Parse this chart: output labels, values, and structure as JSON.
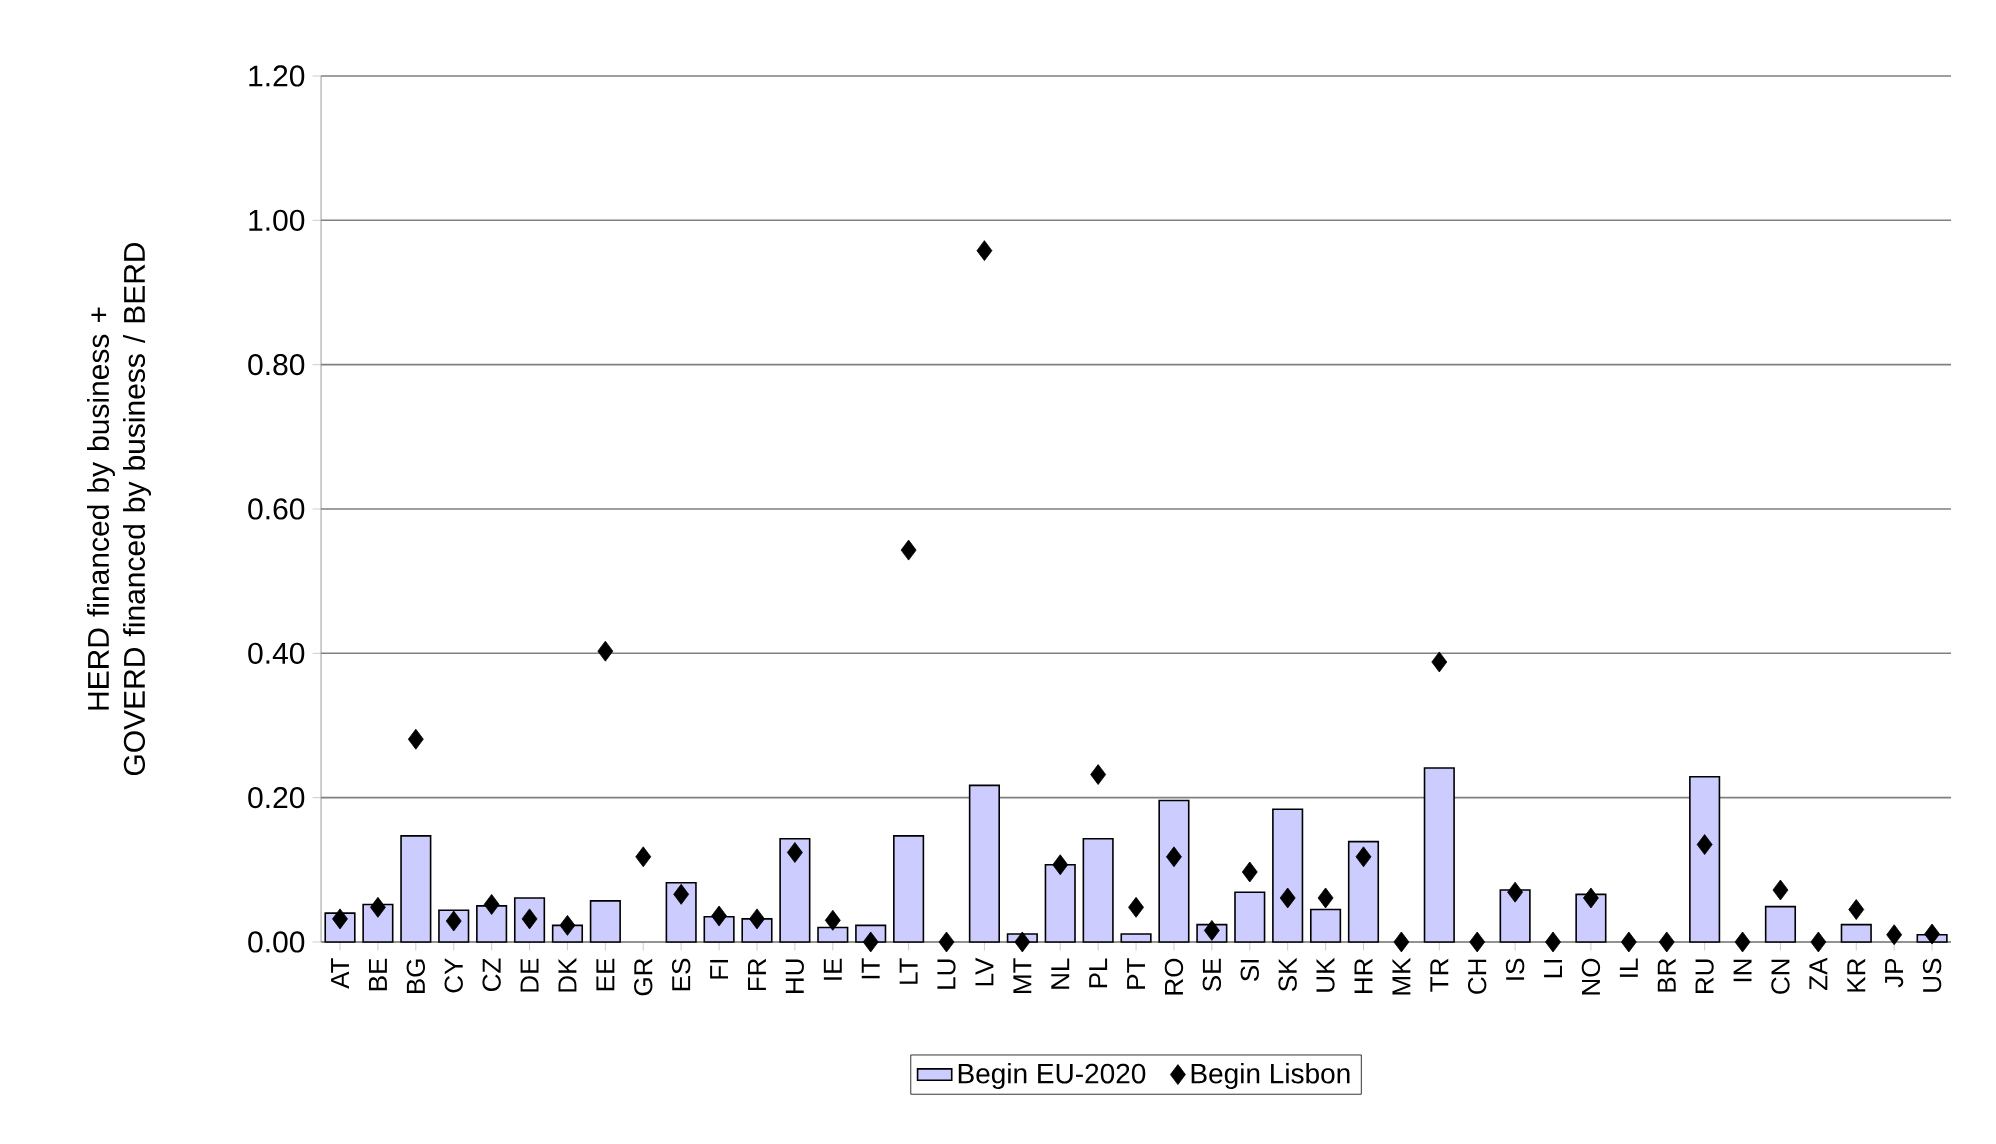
{
  "chart_data": {
    "type": "bar",
    "ylabel": "HERD financed by business + GOVERD financed by business / BERD",
    "categories": [
      "AT",
      "BE",
      "BG",
      "CY",
      "CZ",
      "DE",
      "DK",
      "EE",
      "GR",
      "ES",
      "FI",
      "FR",
      "HU",
      "IE",
      "IT",
      "LT",
      "LU",
      "LV",
      "MT",
      "NL",
      "PL",
      "PT",
      "RO",
      "SE",
      "SI",
      "SK",
      "UK",
      "HR",
      "MK",
      "TR",
      "CH",
      "IS",
      "LI",
      "NO",
      "IL",
      "BR",
      "RU",
      "IN",
      "CN",
      "ZA",
      "KR",
      "JP",
      "US"
    ],
    "series": [
      {
        "name": "Begin EU-2020",
        "color": "#ccccff",
        "values": [
          0.04,
          0.052,
          0.147,
          0.044,
          0.05,
          0.061,
          0.023,
          0.057,
          null,
          0.082,
          0.035,
          0.032,
          0.143,
          0.02,
          0.023,
          0.147,
          null,
          0.217,
          0.011,
          0.107,
          0.143,
          0.011,
          0.196,
          0.024,
          0.069,
          0.184,
          0.045,
          0.139,
          null,
          0.241,
          null,
          0.072,
          null,
          0.066,
          null,
          null,
          0.229,
          null,
          0.049,
          null,
          0.024,
          null,
          0.01
        ]
      },
      {
        "name": "Begin Lisbon",
        "type": "scatter",
        "color": "#000000",
        "values": [
          0.032,
          0.048,
          0.281,
          0.029,
          0.052,
          0.032,
          0.023,
          0.403,
          0.118,
          0.066,
          0.036,
          0.032,
          0.124,
          0.03,
          0.0,
          0.543,
          0.0,
          0.958,
          0.0,
          0.107,
          0.232,
          0.048,
          0.118,
          0.016,
          0.097,
          0.061,
          0.061,
          0.118,
          0.0,
          0.388,
          0.0,
          0.069,
          0.0,
          0.061,
          0.0,
          0.0,
          0.135,
          0.0,
          0.072,
          0.0,
          0.045,
          0.01,
          0.011
        ]
      }
    ],
    "marker": "diamond",
    "ylim": [
      0,
      1.2
    ],
    "yticks": [
      {
        "value": 0,
        "label": "0.00"
      },
      {
        "value": 0.2,
        "label": "0.20"
      },
      {
        "value": 0.4,
        "label": "0.40"
      },
      {
        "value": 0.6,
        "label": "0.60"
      },
      {
        "value": 0.8,
        "label": "0.80"
      },
      {
        "value": 1.0,
        "label": "1.00"
      },
      {
        "value": 1.2,
        "label": "1.20"
      }
    ],
    "grid": "y",
    "legend": "bottom"
  }
}
